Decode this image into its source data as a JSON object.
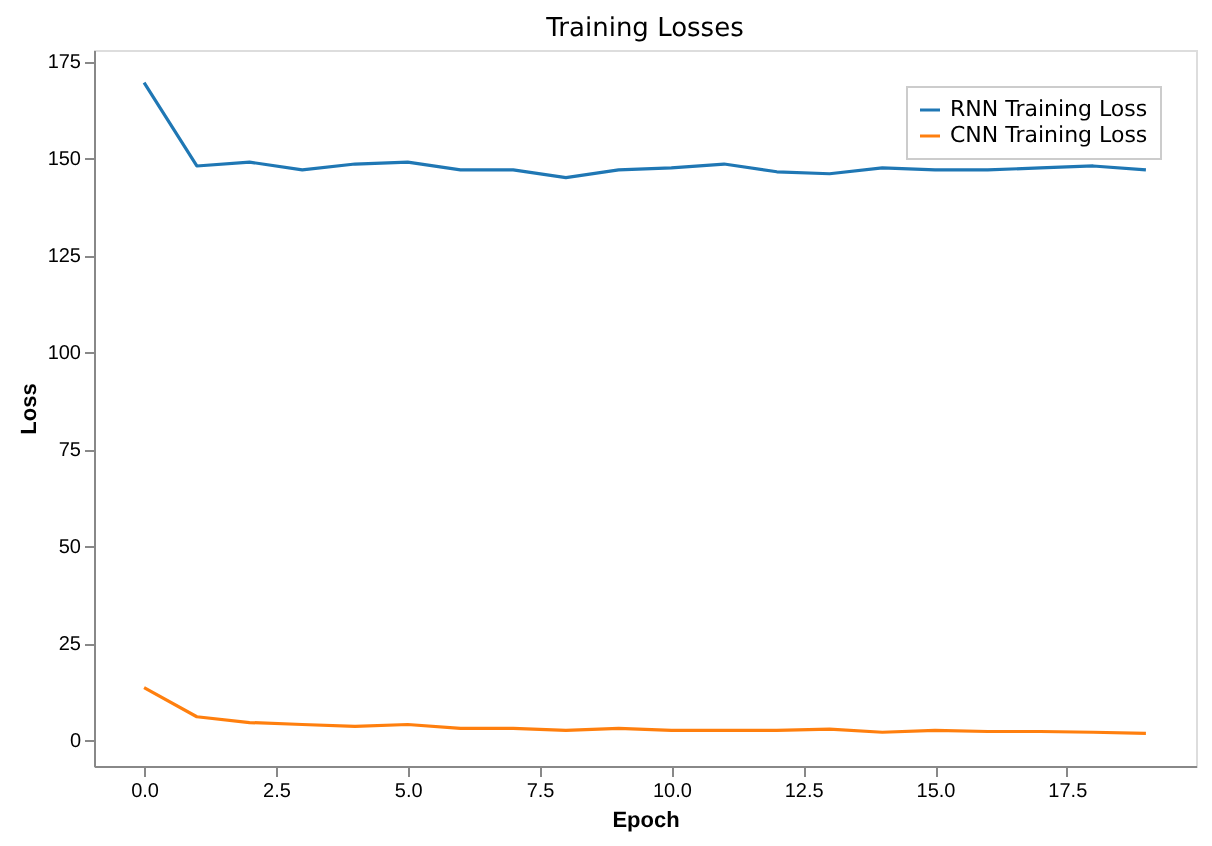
{
  "chart_data": {
    "type": "line",
    "title": "Training Losses",
    "xlabel": "Epoch",
    "ylabel": "Loss",
    "x": [
      0,
      1,
      2,
      3,
      4,
      5,
      6,
      7,
      8,
      9,
      10,
      11,
      12,
      13,
      14,
      15,
      16,
      17,
      18,
      19
    ],
    "series": [
      {
        "name": "RNN Training Loss",
        "color": "#1f77b4",
        "values": [
          169.5,
          148,
          149,
          147,
          148.5,
          149,
          147,
          147,
          145,
          147,
          147.5,
          148.5,
          146.5,
          146,
          147.5,
          147,
          147,
          147.5,
          148,
          147
        ]
      },
      {
        "name": "CNN Training Loss",
        "color": "#ff7f0e",
        "values": [
          13.5,
          6,
          4.5,
          4,
          3.5,
          4,
          3,
          3,
          2.5,
          3,
          2.5,
          2.5,
          2.5,
          2.8,
          2,
          2.5,
          2.2,
          2.2,
          2,
          1.7
        ]
      }
    ],
    "xlim": [
      -0.95,
      19.95
    ],
    "xticks": [
      {
        "value": 0,
        "label": "0.0"
      },
      {
        "value": 2.5,
        "label": "2.5"
      },
      {
        "value": 5,
        "label": "5.0"
      },
      {
        "value": 7.5,
        "label": "7.5"
      },
      {
        "value": 10,
        "label": "10.0"
      },
      {
        "value": 12.5,
        "label": "12.5"
      },
      {
        "value": 15,
        "label": "15.0"
      },
      {
        "value": 17.5,
        "label": "17.5"
      }
    ],
    "ylim": [
      -6.7,
      177.9
    ],
    "yticks": [
      0,
      25,
      50,
      75,
      100,
      125,
      150,
      175
    ],
    "legend": "top right",
    "grid": false,
    "line_style": "solid",
    "marker": "none"
  }
}
